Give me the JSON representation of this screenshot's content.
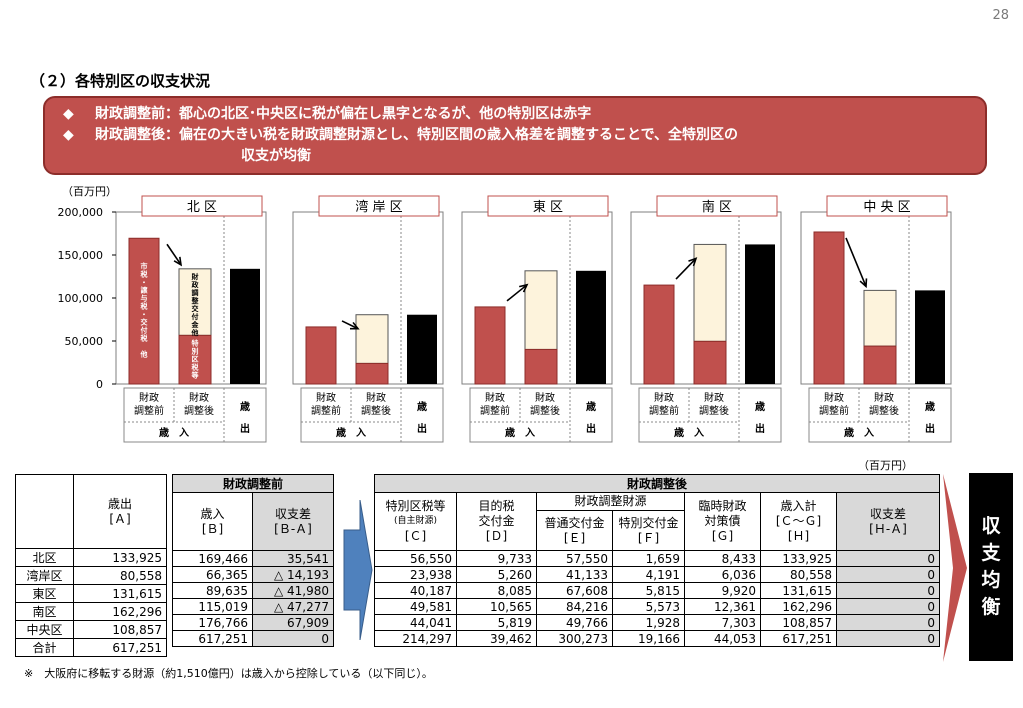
{
  "page_number": "28",
  "section_title": "（２）各特別区の収支状況",
  "banner": {
    "bullet": "◆",
    "line1": "財政調整前：都心の北区･中央区に税が偏在し黒字となるが、他の特別区は赤字",
    "line2": "財政調整後：偏在の大きい税を財政調整財源とし、特別区間の歳入格差を調整することで、全特別区の",
    "line3": "収支が均衡"
  },
  "chart_data": {
    "type": "bar",
    "unit": "（百万円）",
    "ylim": [
      0,
      200000
    ],
    "y_ticks": [
      "0",
      "50,000",
      "100,000",
      "150,000",
      "200,000"
    ],
    "category_labels": {
      "before": "財政\n調整前",
      "after": "財政\n調整後",
      "revenue": "歳　入",
      "expenditure": "歳\n出"
    },
    "bar_labels": {
      "before_stack": "市税・譲与税・交付税　他",
      "after_top": "財政調整交付金他",
      "after_bottom": "特別区税等"
    },
    "panels": [
      {
        "title": "北 区",
        "before": 169466,
        "after_own": 56550,
        "after_total": 133925,
        "expenditure": 133925
      },
      {
        "title": "湾 岸 区",
        "before": 66365,
        "after_own": 23938,
        "after_total": 80558,
        "expenditure": 80558
      },
      {
        "title": "東 区",
        "before": 89635,
        "after_own": 40187,
        "after_total": 131615,
        "expenditure": 131615
      },
      {
        "title": "南 区",
        "before": 115019,
        "after_own": 49581,
        "after_total": 162296,
        "expenditure": 162296
      },
      {
        "title": "中 央 区",
        "before": 176766,
        "after_own": 44041,
        "after_total": 108857,
        "expenditure": 108857
      }
    ],
    "colors": {
      "red": "#c0504d",
      "cream": "#fdf3dc",
      "black": "#000000"
    }
  },
  "table": {
    "unit": "（百万円）",
    "left_header": {
      "expense": "歳出\n[Ａ]"
    },
    "before_header": {
      "title": "財政調整前",
      "revenue": "歳入\n[Ｂ]",
      "balance": "収支差\n[Ｂ-Ａ]"
    },
    "after_header": {
      "title": "財政調整後",
      "tax": "特別区税等",
      "tax_sub": "(自主財源)",
      "tax_code": "[Ｃ]",
      "purpose": "目的税\n交付金\n[Ｄ]",
      "fund": "財政調整財源",
      "normal": "普通交付金\n[Ｅ]",
      "special": "特別交付金\n[Ｆ]",
      "bond": "臨時財政\n対策債\n[Ｇ]",
      "total": "歳入計\n[Ｃ～Ｇ]\n[Ｈ]",
      "balance": "収支差\n[Ｈ-Ａ]"
    },
    "rows": [
      {
        "name": "北区",
        "A": "133,925",
        "B": "169,466",
        "BA": "35,541",
        "C": "56,550",
        "D": "9,733",
        "E": "57,550",
        "F": "1,659",
        "G": "8,433",
        "H": "133,925",
        "HA": "0"
      },
      {
        "name": "湾岸区",
        "A": "80,558",
        "B": "66,365",
        "BA": "△ 14,193",
        "C": "23,938",
        "D": "5,260",
        "E": "41,133",
        "F": "4,191",
        "G": "6,036",
        "H": "80,558",
        "HA": "0"
      },
      {
        "name": "東区",
        "A": "131,615",
        "B": "89,635",
        "BA": "△ 41,980",
        "C": "40,187",
        "D": "8,085",
        "E": "67,608",
        "F": "5,815",
        "G": "9,920",
        "H": "131,615",
        "HA": "0"
      },
      {
        "name": "南区",
        "A": "162,296",
        "B": "115,019",
        "BA": "△ 47,277",
        "C": "49,581",
        "D": "10,565",
        "E": "84,216",
        "F": "5,573",
        "G": "12,361",
        "H": "162,296",
        "HA": "0"
      },
      {
        "name": "中央区",
        "A": "108,857",
        "B": "176,766",
        "BA": "67,909",
        "C": "44,041",
        "D": "5,819",
        "E": "49,766",
        "F": "1,928",
        "G": "7,303",
        "H": "108,857",
        "HA": "0"
      },
      {
        "name": "合計",
        "A": "617,251",
        "B": "617,251",
        "BA": "0",
        "C": "214,297",
        "D": "39,462",
        "E": "300,273",
        "F": "19,166",
        "G": "44,053",
        "H": "617,251",
        "HA": "0"
      }
    ]
  },
  "result_label": "収支均衡",
  "footnote": "※　大阪府に移転する財源（約1,510億円）は歳入から控除している（以下同じ）。"
}
